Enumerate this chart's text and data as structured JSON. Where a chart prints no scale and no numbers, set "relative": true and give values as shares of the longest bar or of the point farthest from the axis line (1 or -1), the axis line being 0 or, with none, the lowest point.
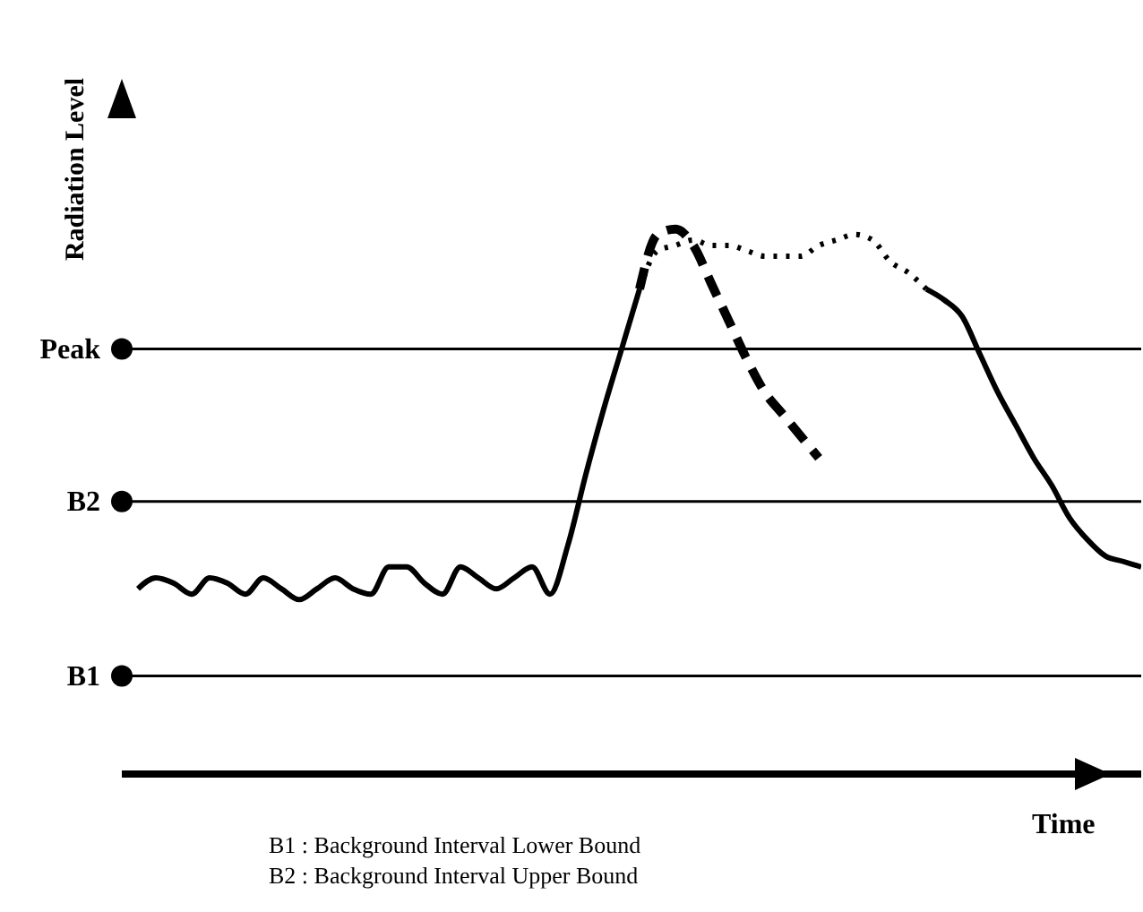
{
  "chart_data": {
    "type": "line",
    "relative": true,
    "xlabel": "Time",
    "ylabel": "Radiation Level",
    "categories": [
      null,
      null,
      null,
      null,
      null,
      null,
      null,
      null,
      null,
      null,
      null,
      null,
      null,
      null,
      null,
      null,
      null,
      null,
      null,
      null,
      null,
      null,
      null,
      null,
      null,
      null,
      null,
      null,
      null,
      null,
      null,
      null,
      null,
      null,
      null,
      null,
      null,
      null,
      null,
      null,
      null,
      null,
      null,
      null,
      null,
      null,
      null,
      null,
      null,
      null,
      null,
      null,
      null,
      null,
      null,
      null,
      null
    ],
    "series": [
      {
        "color": "#000000",
        "line_style": "solid",
        "values": [
          0.34,
          0.36,
          0.35,
          0.33,
          0.36,
          0.35,
          0.33,
          0.36,
          0.34,
          0.32,
          0.34,
          0.36,
          0.34,
          0.33,
          0.38,
          0.38,
          0.35,
          0.33,
          0.38,
          0.36,
          0.34,
          0.36,
          0.38,
          0.33,
          0.42,
          0.55,
          0.67,
          0.78,
          0.89,
          null,
          null,
          null,
          null,
          null,
          null,
          null,
          null,
          null,
          null,
          null,
          null,
          null,
          null,
          null,
          null,
          null,
          null,
          null,
          null,
          null,
          null,
          null,
          null,
          null,
          null,
          null,
          null
        ]
      },
      {
        "color": "#000000",
        "line_style": "dashed",
        "values": [
          null,
          null,
          null,
          null,
          null,
          null,
          null,
          null,
          null,
          null,
          null,
          null,
          null,
          null,
          null,
          null,
          null,
          null,
          null,
          null,
          null,
          null,
          null,
          null,
          null,
          null,
          null,
          null,
          0.89,
          0.99,
          1.0,
          0.97,
          0.9,
          0.83,
          0.76,
          0.7,
          0.66,
          0.62,
          0.58,
          null,
          null,
          null,
          null,
          null,
          null,
          null,
          null,
          null,
          null,
          null,
          null,
          null,
          null,
          null,
          null,
          null,
          null
        ]
      },
      {
        "color": "#000000",
        "line_style": "dotted",
        "values": [
          null,
          null,
          null,
          null,
          null,
          null,
          null,
          null,
          null,
          null,
          null,
          null,
          null,
          null,
          null,
          null,
          null,
          null,
          null,
          null,
          null,
          null,
          null,
          null,
          null,
          null,
          null,
          null,
          0.89,
          0.96,
          0.97,
          0.98,
          0.97,
          0.97,
          0.96,
          0.95,
          0.95,
          0.95,
          0.97,
          0.98,
          0.99,
          0.98,
          0.94,
          0.92,
          0.89,
          null,
          null,
          null,
          null,
          null,
          null,
          null,
          null,
          null,
          null,
          null,
          null
        ]
      },
      {
        "color": "#000000",
        "line_style": "solid",
        "values": [
          null,
          null,
          null,
          null,
          null,
          null,
          null,
          null,
          null,
          null,
          null,
          null,
          null,
          null,
          null,
          null,
          null,
          null,
          null,
          null,
          null,
          null,
          null,
          null,
          null,
          null,
          null,
          null,
          null,
          null,
          null,
          null,
          null,
          null,
          null,
          null,
          null,
          null,
          null,
          null,
          null,
          null,
          null,
          null,
          0.89,
          0.87,
          0.84,
          0.77,
          0.7,
          0.64,
          0.58,
          0.53,
          0.47,
          0.43,
          0.4,
          0.39,
          0.38
        ]
      }
    ],
    "ref_lines": [
      {
        "axis": "y",
        "value": 0.78,
        "label": "Peak"
      },
      {
        "axis": "y",
        "value": 0.5,
        "label": "B2"
      },
      {
        "axis": "y",
        "value": 0.18,
        "label": "B1"
      }
    ],
    "annotations": [
      "B1 : Background Interval Lower Bound",
      "B2 : Background Interval Upper Bound"
    ]
  }
}
